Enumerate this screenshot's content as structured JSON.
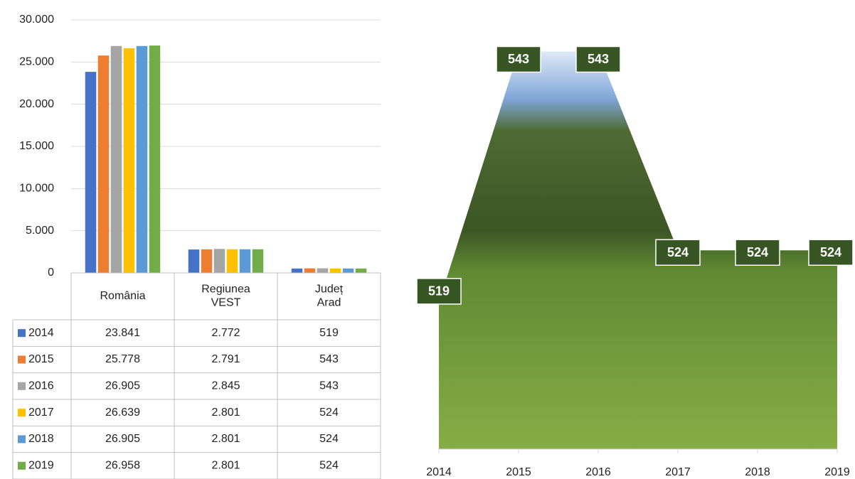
{
  "chart_data": [
    {
      "type": "bar",
      "categories": [
        "România",
        "Regiunea VEST",
        "Județ Arad"
      ],
      "series": [
        {
          "name": "2014",
          "color": "#4472c4",
          "values": [
            23841,
            2772,
            519
          ],
          "value_labels": [
            "23.841",
            "2.772",
            "519"
          ]
        },
        {
          "name": "2015",
          "color": "#ed7d31",
          "values": [
            25778,
            2791,
            543
          ],
          "value_labels": [
            "25.778",
            "2.791",
            "543"
          ]
        },
        {
          "name": "2016",
          "color": "#a5a5a5",
          "values": [
            26905,
            2845,
            543
          ],
          "value_labels": [
            "26.905",
            "2.845",
            "543"
          ]
        },
        {
          "name": "2017",
          "color": "#ffc000",
          "values": [
            26639,
            2801,
            524
          ],
          "value_labels": [
            "26.639",
            "2.801",
            "524"
          ]
        },
        {
          "name": "2018",
          "color": "#5b9bd5",
          "values": [
            26905,
            2801,
            524
          ],
          "value_labels": [
            "26.905",
            "2.801",
            "524"
          ]
        },
        {
          "name": "2019",
          "color": "#70ad47",
          "values": [
            26958,
            2801,
            524
          ],
          "value_labels": [
            "26.958",
            "2.801",
            "524"
          ]
        }
      ],
      "ylim": [
        0,
        30000
      ],
      "yticks": [
        0,
        {
          "value": 5000,
          "label": "5.000"
        },
        {
          "value": 10000,
          "label": "10.000"
        },
        {
          "value": 15000,
          "label": "15.000"
        },
        {
          "value": 20000,
          "label": "20.000"
        },
        {
          "value": 25000,
          "label": "25.000"
        },
        {
          "value": 30000,
          "label": "30.000"
        }
      ],
      "grid": true,
      "data_table": true
    },
    {
      "type": "area",
      "categories": [
        "2014",
        "2015",
        "2016",
        "2017",
        "2018",
        "2019"
      ],
      "values": [
        519,
        543,
        543,
        524,
        524,
        524
      ],
      "ylim": [
        505,
        545
      ],
      "label_color": "#375623"
    }
  ]
}
